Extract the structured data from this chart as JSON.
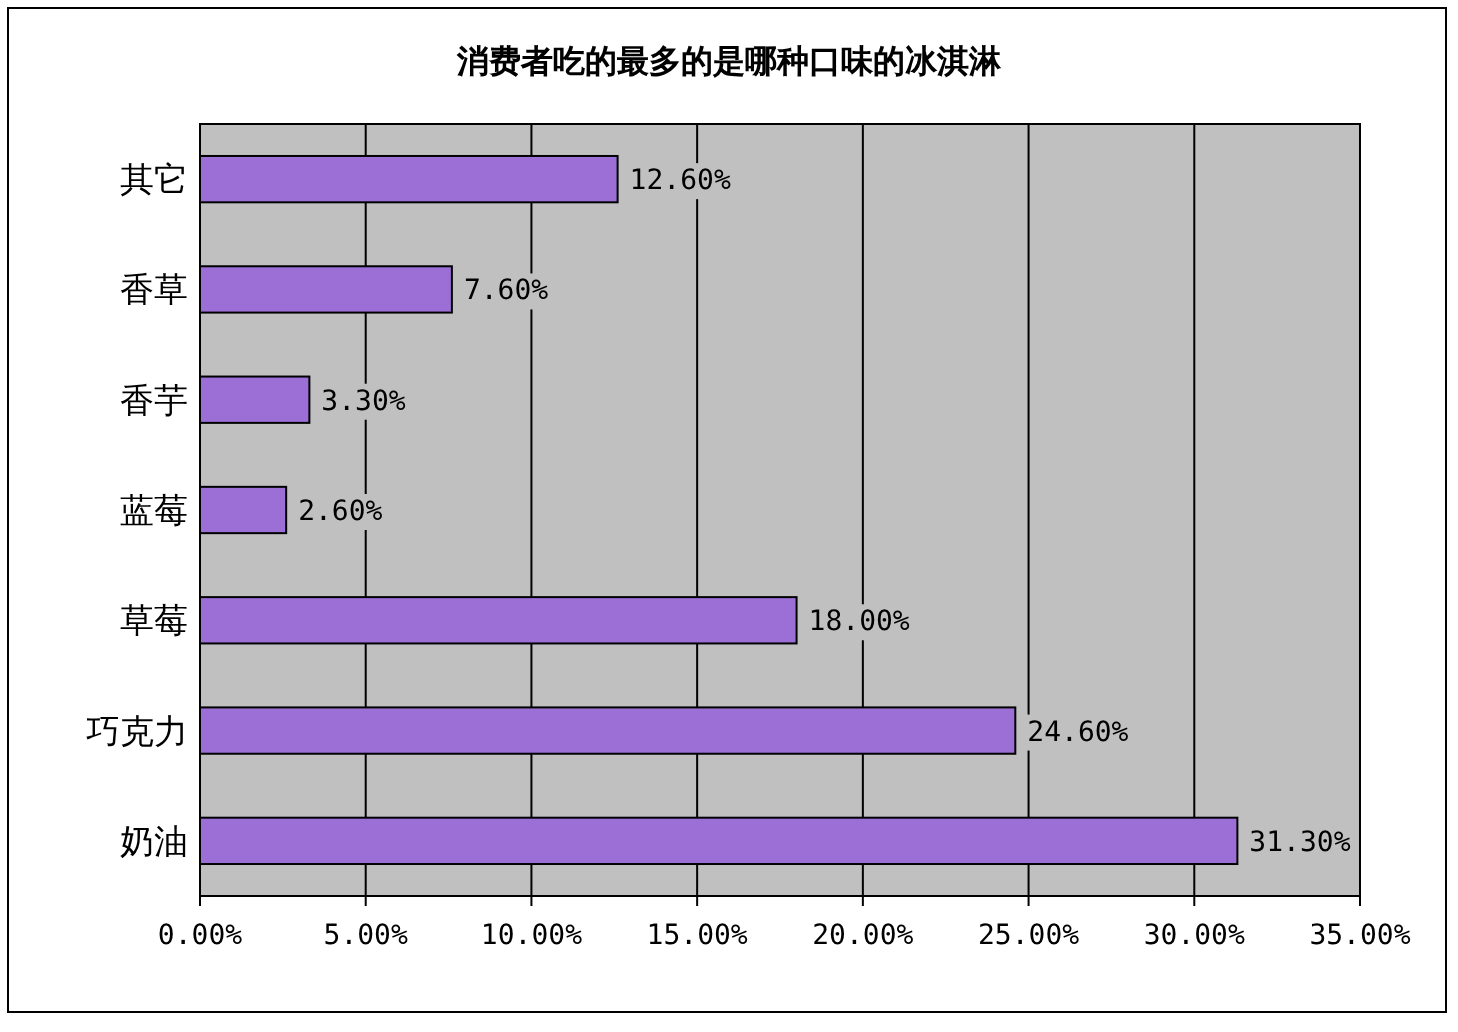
{
  "chart_data": {
    "type": "bar",
    "orientation": "horizontal",
    "title": "消费者吃的最多的是哪种口味的冰淇淋",
    "categories": [
      "其它",
      "香草",
      "香芋",
      "蓝莓",
      "草莓",
      "巧克力",
      "奶油"
    ],
    "values": [
      12.6,
      7.6,
      3.3,
      2.6,
      18.0,
      24.6,
      31.3
    ],
    "value_labels": [
      "12.60%",
      "7.60%",
      "3.30%",
      "2.60%",
      "18.00%",
      "24.60%",
      "31.30%"
    ],
    "color": "#9b6fd6",
    "xlim": [
      0,
      35
    ],
    "xticks": [
      {
        "value": 0,
        "label": "0.00%"
      },
      {
        "value": 5,
        "label": "5.00%"
      },
      {
        "value": 10,
        "label": "10.00%"
      },
      {
        "value": 15,
        "label": "15.00%"
      },
      {
        "value": 20,
        "label": "20.00%"
      },
      {
        "value": 25,
        "label": "25.00%"
      },
      {
        "value": 30,
        "label": "30.00%"
      },
      {
        "value": 35,
        "label": "35.00%"
      }
    ],
    "grid": "x"
  }
}
